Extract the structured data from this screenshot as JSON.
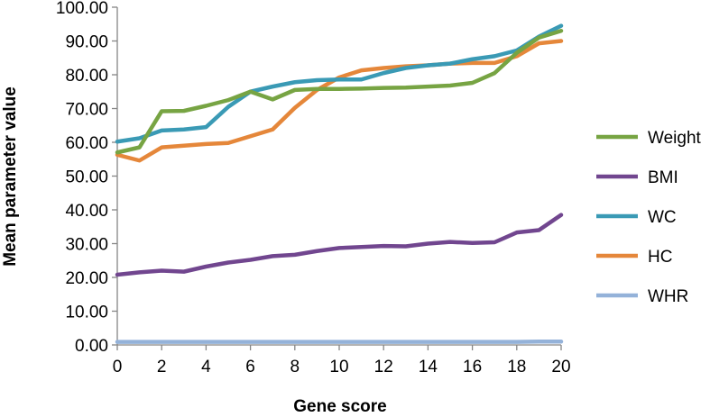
{
  "chart_data": {
    "type": "line",
    "title": "",
    "xlabel": "Gene score",
    "ylabel": "Mean parameter value",
    "x": [
      0,
      1,
      2,
      3,
      4,
      5,
      6,
      7,
      8,
      9,
      10,
      11,
      12,
      13,
      14,
      15,
      16,
      17,
      18,
      19,
      20
    ],
    "x_ticks": [
      0,
      2,
      4,
      6,
      8,
      10,
      12,
      14,
      16,
      18,
      20
    ],
    "x_tick_labels": [
      "0",
      "2",
      "4",
      "6",
      "8",
      "10",
      "12",
      "14",
      "16",
      "18",
      "20"
    ],
    "xlim": [
      0,
      20
    ],
    "ylim": [
      0,
      100
    ],
    "y_ticks": [
      0,
      10,
      20,
      30,
      40,
      50,
      60,
      70,
      80,
      90,
      100
    ],
    "y_tick_labels": [
      "0.00",
      "10.00",
      "20.00",
      "30.00",
      "40.00",
      "50.00",
      "60.00",
      "70.00",
      "80.00",
      "90.00",
      "100.00"
    ],
    "grid": false,
    "legend_position": "right",
    "series": [
      {
        "name": "Weight",
        "color": "#77a443",
        "values": [
          57.0,
          58.5,
          69.2,
          69.3,
          70.8,
          72.5,
          75.0,
          72.7,
          75.5,
          75.8,
          75.8,
          75.9,
          76.1,
          76.2,
          76.5,
          76.8,
          77.6,
          80.5,
          86.5,
          91.0,
          93.0
        ]
      },
      {
        "name": "BMI",
        "color": "#71468f",
        "values": [
          20.8,
          21.5,
          22.0,
          21.7,
          23.2,
          24.4,
          25.2,
          26.3,
          26.7,
          27.8,
          28.7,
          29.0,
          29.3,
          29.2,
          30.0,
          30.5,
          30.2,
          30.4,
          33.3,
          34.0,
          38.5
        ]
      },
      {
        "name": "WC",
        "color": "#3a9ab5",
        "values": [
          60.2,
          61.2,
          63.5,
          63.8,
          64.5,
          70.5,
          75.0,
          76.5,
          77.8,
          78.4,
          78.6,
          78.6,
          80.5,
          82.0,
          82.8,
          83.3,
          84.6,
          85.5,
          87.2,
          91.3,
          94.5
        ]
      },
      {
        "name": "HC",
        "color": "#e5873a",
        "values": [
          56.3,
          54.6,
          58.5,
          59.0,
          59.5,
          59.8,
          61.8,
          63.8,
          70.2,
          75.5,
          79.2,
          81.3,
          82.0,
          82.5,
          82.8,
          83.3,
          83.5,
          83.5,
          85.5,
          89.3,
          90.0
        ]
      },
      {
        "name": "WHR",
        "color": "#94b2d9",
        "values": [
          0.9,
          0.9,
          0.9,
          0.9,
          0.9,
          0.9,
          0.9,
          0.9,
          0.9,
          0.9,
          0.9,
          0.9,
          0.9,
          0.9,
          0.9,
          0.9,
          0.9,
          0.9,
          0.9,
          1.0,
          1.0
        ]
      }
    ]
  }
}
